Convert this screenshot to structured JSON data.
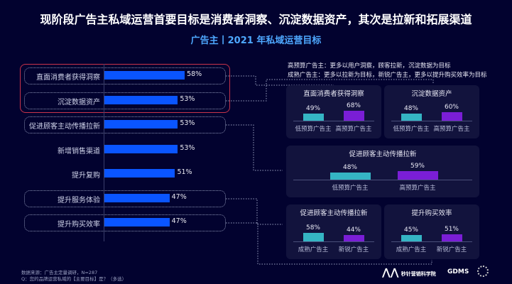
{
  "title": "现阶段广告主私域运营首要目标是消费者洞察、沉淀数据资产，其次是拉新和拓展渠道",
  "subtitle": "广告主丨2021 年私域运营目标",
  "notes": [
    "高预算广告主：更多以用户洞察，顾客拉新，沉淀数据为目标",
    "成熟广告主：更多以拉新为目标，新锐广告主，更多以提升购买效率为目标"
  ],
  "footer": {
    "source": "数据来源：广告主定量调研，N=287",
    "question": "Q：您的品牌运营私域的【主要目标】是？（多选）"
  },
  "logos": [
    "秒针营销科学院",
    "GDMS"
  ],
  "colors": {
    "main_bar": "#0a55ff",
    "teal": "#35b5c4",
    "purple": "#7a1ed6",
    "highlight": "#c8334a"
  },
  "chart_data": [
    {
      "type": "bar",
      "orientation": "horizontal",
      "title": "广告主丨2021 年私域运营目标",
      "categories": [
        "直面消费者获得洞察",
        "沉淀数据资产",
        "促进顾客主动传播拉新",
        "新增销售渠道",
        "提升复购",
        "提升服务体验",
        "提升购买效率"
      ],
      "values": [
        58,
        53,
        53,
        53,
        51,
        47,
        47
      ],
      "labels": [
        "58%",
        "53%",
        "53%",
        "53%",
        "51%",
        "47%",
        "47%"
      ],
      "unit": "%"
    },
    {
      "type": "bar",
      "title": "直面消费者获得洞察",
      "categories": [
        "低预算广告主",
        "高预算广告主"
      ],
      "values": [
        49,
        68
      ],
      "labels": [
        "49%",
        "68%"
      ]
    },
    {
      "type": "bar",
      "title": "沉淀数据资产",
      "categories": [
        "低预算广告主",
        "高预算广告主"
      ],
      "values": [
        48,
        60
      ],
      "labels": [
        "48%",
        "60%"
      ]
    },
    {
      "type": "bar",
      "title": "促进顾客主动传播拉新",
      "categories": [
        "低预算广告主",
        "高预算广告主"
      ],
      "values": [
        48,
        59
      ],
      "labels": [
        "48%",
        "59%"
      ]
    },
    {
      "type": "bar",
      "title": "促进顾客主动传播拉新",
      "categories": [
        "成熟广告主",
        "新锐广告主"
      ],
      "values": [
        58,
        44
      ],
      "labels": [
        "58%",
        "44%"
      ]
    },
    {
      "type": "bar",
      "title": "提升购买效率",
      "categories": [
        "成熟广告主",
        "新锐广告主"
      ],
      "values": [
        45,
        51
      ],
      "labels": [
        "45%",
        "51%"
      ]
    }
  ]
}
